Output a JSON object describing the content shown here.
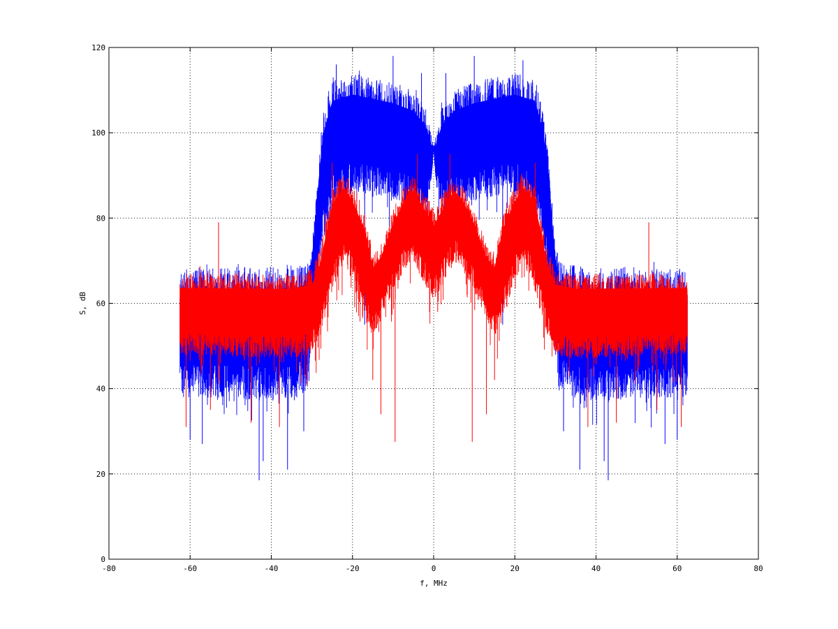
{
  "chart_data": {
    "type": "line",
    "xlabel": "f, MHz",
    "ylabel": "S, dB",
    "xlim": [
      -80,
      80
    ],
    "ylim": [
      0,
      120
    ],
    "xticks": [
      -80,
      -60,
      -40,
      -20,
      0,
      20,
      40,
      60,
      80
    ],
    "yticks": [
      0,
      20,
      40,
      60,
      80,
      100,
      120
    ],
    "grid": true,
    "x_range": [
      -62.5,
      62.5
    ],
    "series": [
      {
        "color": "#0000ff",
        "envelope": {
          "f": [
            -62.5,
            -35,
            -31,
            -30,
            -28,
            -27,
            -25,
            -20,
            -15,
            -10,
            -5,
            -2,
            -0.5,
            0,
            0.5,
            2,
            5,
            10,
            15,
            20,
            25,
            27,
            28,
            30,
            31,
            35,
            62.5
          ],
          "upper": [
            68,
            69,
            70,
            74,
            98,
            106,
            113,
            114,
            113,
            112,
            110,
            106,
            99,
            97,
            99,
            106,
            110,
            112,
            113,
            114,
            113,
            106,
            98,
            74,
            70,
            69,
            68
          ],
          "lower": [
            38,
            37,
            40,
            55,
            68,
            75,
            82,
            86,
            85,
            84,
            83,
            82,
            88,
            96,
            88,
            82,
            83,
            84,
            85,
            86,
            82,
            75,
            68,
            55,
            40,
            37,
            38
          ]
        },
        "spikes_up": [
          [
            -24,
            116
          ],
          [
            -10,
            118
          ],
          [
            -3,
            114
          ],
          [
            3,
            114
          ],
          [
            10,
            118
          ],
          [
            22,
            117
          ]
        ],
        "spikes_down": [
          [
            -60,
            28
          ],
          [
            -57,
            27
          ],
          [
            -43,
            18.5
          ],
          [
            -42,
            23
          ],
          [
            -36,
            21
          ],
          [
            -32,
            30
          ],
          [
            -17,
            55
          ],
          [
            17,
            55
          ],
          [
            32,
            30
          ],
          [
            36,
            21
          ],
          [
            42,
            23
          ],
          [
            43,
            18.5
          ],
          [
            57,
            27
          ],
          [
            60,
            28
          ]
        ]
      },
      {
        "color": "#ff0000",
        "envelope": {
          "f": [
            -62.5,
            -35,
            -30,
            -28,
            -25,
            -22,
            -20,
            -17,
            -15,
            -13,
            -10,
            -7,
            -5,
            -3,
            -1,
            0,
            1,
            3,
            5,
            7,
            10,
            13,
            15,
            17,
            20,
            22,
            25,
            28,
            30,
            35,
            62.5
          ],
          "upper": [
            67,
            67,
            68,
            73,
            88,
            91,
            88,
            82,
            72,
            74,
            82,
            88,
            90,
            87,
            84,
            82,
            84,
            87,
            90,
            88,
            82,
            74,
            72,
            82,
            88,
            91,
            88,
            73,
            68,
            67,
            67
          ],
          "lower": [
            48,
            47,
            48,
            52,
            62,
            70,
            65,
            56,
            52,
            56,
            63,
            68,
            70,
            66,
            62,
            60,
            62,
            66,
            70,
            68,
            63,
            56,
            52,
            56,
            65,
            70,
            62,
            52,
            48,
            47,
            48
          ]
        },
        "spikes_up": [
          [
            -53,
            79
          ],
          [
            -25,
            93
          ],
          [
            -4,
            95
          ],
          [
            4,
            95
          ],
          [
            25,
            93
          ],
          [
            53,
            79
          ]
        ],
        "spikes_down": [
          [
            -61,
            31
          ],
          [
            -55,
            35
          ],
          [
            -45,
            32
          ],
          [
            -38,
            31
          ],
          [
            -15,
            42
          ],
          [
            -13,
            34
          ],
          [
            -9.5,
            27.5
          ],
          [
            -1,
            58
          ],
          [
            1,
            58
          ],
          [
            9.5,
            27.5
          ],
          [
            13,
            34
          ],
          [
            15,
            42
          ],
          [
            38,
            31
          ],
          [
            45,
            32
          ],
          [
            55,
            35
          ],
          [
            61,
            31
          ]
        ]
      }
    ]
  }
}
